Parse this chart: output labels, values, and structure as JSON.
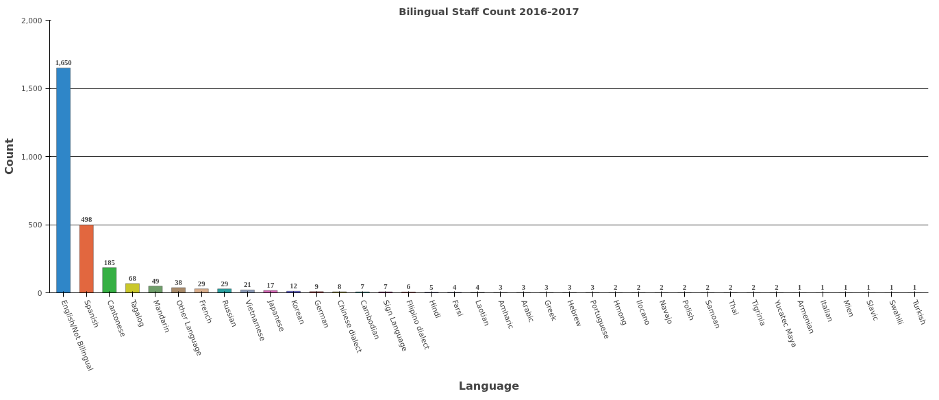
{
  "chart_data": {
    "type": "bar",
    "title": "Bilingual Staff Count 2016-2017",
    "xlabel": "Language",
    "ylabel": "Count",
    "categories": [
      "English/Not Bilingual",
      "Spanish",
      "Cantonese",
      "Tagalog",
      "Mandarin",
      "Other Language",
      "French",
      "Russian",
      "Vietnamese",
      "Japanese",
      "Korean",
      "German",
      "Chinese dialect",
      "Cambodian",
      "Sign Language",
      "Filipino dialect",
      "Hindi",
      "Farsi",
      "Laotian",
      "Amharic",
      "Arabic",
      "Greek",
      "Hebrew",
      "Portuguese",
      "Hmong",
      "Ilocano",
      "Navajo",
      "Polish",
      "Samoan",
      "Thai",
      "Tigrinia",
      "Yucatec Maya",
      "Armenian",
      "Italian",
      "Mien",
      "Slavic",
      "Swahili",
      "Turkish"
    ],
    "values": [
      1650,
      498,
      185,
      68,
      49,
      38,
      29,
      29,
      21,
      17,
      12,
      9,
      8,
      7,
      7,
      6,
      5,
      4,
      4,
      3,
      3,
      3,
      3,
      3,
      2,
      2,
      2,
      2,
      2,
      2,
      2,
      2,
      1,
      1,
      1,
      1,
      1,
      1
    ],
    "colors": [
      "#2f86c8",
      "#e2673f",
      "#36b044",
      "#c9c72a",
      "#6f9e6a",
      "#a88a6a",
      "#d9ae8c",
      "#2aa0a0",
      "#8a9ab8",
      "#d868b8",
      "#6a6ad8",
      "#c05a5a",
      "#c8c060",
      "#5ac0c0",
      "#9a3a7a",
      "#d85a5a",
      "#5a5ac0",
      "#3a3aa0",
      "#808080",
      "#b05ab0",
      "#c0a040",
      "#40a060",
      "#a06040",
      "#8040a0",
      "#40a0a0",
      "#6040c0",
      "#a0a040",
      "#c06080",
      "#40c080",
      "#c0c040",
      "#4060c0",
      "#a04060",
      "#808080",
      "#a0a0a0",
      "#909090",
      "#a0a0a0",
      "#909090",
      "#a0a0a0"
    ],
    "ylim": [
      0,
      2000
    ],
    "yticks": [
      {
        "value": 0,
        "label": "0"
      },
      {
        "value": 500,
        "label": "500"
      },
      {
        "value": 1000,
        "label": "1,000"
      },
      {
        "value": 1500,
        "label": "1,500"
      },
      {
        "value": 2000,
        "label": "2,000"
      }
    ],
    "value_labels": [
      "1,650",
      "498",
      "185",
      "68",
      "49",
      "38",
      "29",
      "29",
      "21",
      "17",
      "12",
      "9",
      "8",
      "7",
      "7",
      "6",
      "5",
      "4",
      "4",
      "3",
      "3",
      "3",
      "3",
      "3",
      "2",
      "2",
      "2",
      "2",
      "2",
      "2",
      "2",
      "2",
      "1",
      "1",
      "1",
      "1",
      "1",
      "1"
    ],
    "grid": "y"
  }
}
